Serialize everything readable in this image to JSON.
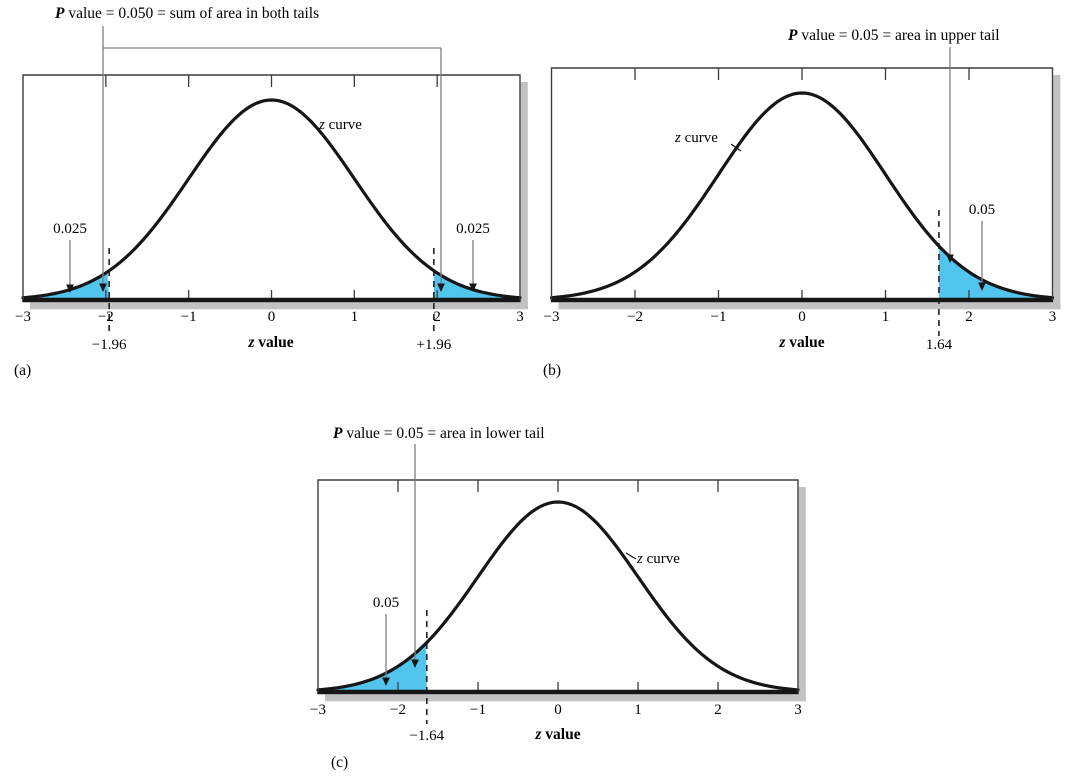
{
  "style": {
    "background": "#ffffff",
    "shade_color": "#52c5ef",
    "curve_color": "#161616",
    "box_color": "#3c3c3c",
    "pointer_line_color": "#7f7f7f",
    "arrow_color": "#161616",
    "shadow_color": "#c2c2c2",
    "dashed_line_color": "#222222",
    "text_color": "#000000"
  },
  "chart_data": [
    {
      "id": "a",
      "type": "area",
      "curve": "standard normal (z) density",
      "panel_label": "(a)",
      "annotation_italic": "P",
      "annotation_rest": " value = 0.050 = sum of area in both tails",
      "curve_label_italic": "z",
      "curve_label_rest": " curve",
      "xlabel_italic": "z",
      "xlabel_rest": " value",
      "x_range": [
        -3,
        3
      ],
      "x_ticks": [
        -3,
        -2,
        -1,
        0,
        1,
        2,
        3
      ],
      "x_tick_labels": [
        "−3",
        "−2",
        "−1",
        "0",
        "1",
        "2",
        "3"
      ],
      "critical_values": [
        -1.96,
        1.96
      ],
      "critical_value_labels": [
        "−1.96",
        "+1.96"
      ],
      "shaded_regions": [
        [
          -3,
          -1.96
        ],
        [
          1.96,
          3
        ]
      ],
      "shaded_area_labels": [
        "0.025",
        "0.025"
      ],
      "p_value": 0.05
    },
    {
      "id": "b",
      "type": "area",
      "curve": "standard normal (z) density",
      "panel_label": "(b)",
      "annotation_italic": "P",
      "annotation_rest": " value = 0.05 = area in upper tail",
      "curve_label_italic": "z",
      "curve_label_rest": " curve",
      "xlabel_italic": "z",
      "xlabel_rest": " value",
      "x_range": [
        -3,
        3
      ],
      "x_ticks": [
        -3,
        -2,
        -1,
        0,
        1,
        2,
        3
      ],
      "x_tick_labels": [
        "−3",
        "−2",
        "−1",
        "0",
        "1",
        "2",
        "3"
      ],
      "critical_values": [
        1.64
      ],
      "critical_value_labels": [
        "1.64"
      ],
      "shaded_regions": [
        [
          1.64,
          3
        ]
      ],
      "shaded_area_labels": [
        "0.05"
      ],
      "p_value": 0.05
    },
    {
      "id": "c",
      "type": "area",
      "curve": "standard normal (z) density",
      "panel_label": "(c)",
      "annotation_italic": "P",
      "annotation_rest": " value = 0.05 = area in lower tail",
      "curve_label_italic": "z",
      "curve_label_rest": " curve",
      "xlabel_italic": "z",
      "xlabel_rest": " value",
      "x_range": [
        -3,
        3
      ],
      "x_ticks": [
        -3,
        -2,
        -1,
        0,
        1,
        2,
        3
      ],
      "x_tick_labels": [
        "−3",
        "−2",
        "−1",
        "0",
        "1",
        "2",
        "3"
      ],
      "critical_values": [
        -1.64
      ],
      "critical_value_labels": [
        "−1.64"
      ],
      "shaded_regions": [
        [
          -3,
          -1.64
        ]
      ],
      "shaded_area_labels": [
        "0.05"
      ],
      "p_value": 0.05
    }
  ]
}
